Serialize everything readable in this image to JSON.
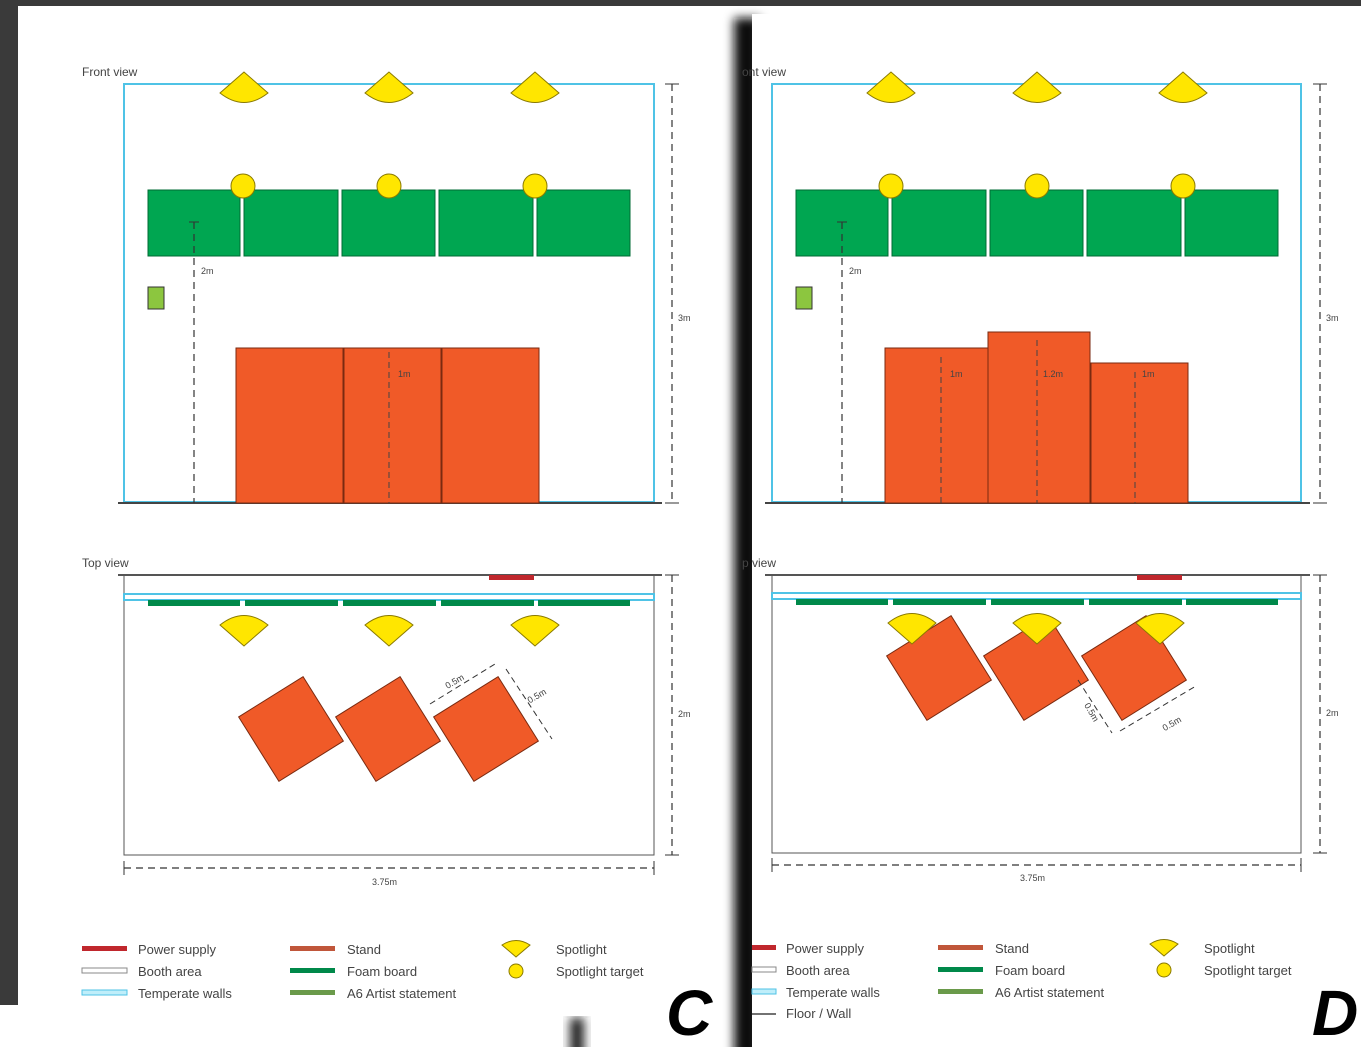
{
  "sheets": [
    {
      "id": "C",
      "letter": "C",
      "front_view_title": "Front view",
      "top_view_title": "Top view",
      "dim_height": "3m",
      "dim_power_height": "2m",
      "dim_depth": "2m",
      "dim_width": "3.75m",
      "dim_stand_side_a": "0.5m",
      "dim_stand_side_b": "0.5m",
      "stand_height_labels": [
        "1m"
      ]
    },
    {
      "id": "D",
      "letter": "D",
      "front_view_title": "ont view",
      "top_view_title": "p view",
      "dim_height": "3m",
      "dim_power_height": "2m",
      "dim_depth": "2m",
      "dim_width": "3.75m",
      "dim_stand_side_a": "0.5m",
      "dim_stand_side_b": "0.5m",
      "stand_height_labels": [
        "1m",
        "1.2m",
        "1m"
      ]
    }
  ],
  "legend": {
    "power_supply": "Power supply",
    "booth_area": "Booth area",
    "temperate_walls": "Temperate walls",
    "floor_wall": "Floor / Wall",
    "stand": "Stand",
    "foam_board": "Foam board",
    "artist_statement": "A6 Artist statement",
    "spotlight": "Spotlight",
    "spotlight_target": "Spotlight target"
  },
  "colors": {
    "frame_dark": "#3a3a3a",
    "wall_cyan": "#4fc3e6",
    "foam_board": "#00a651",
    "stand": "#f05a28",
    "spotlight": "#ffe600",
    "power": "#c0272d",
    "artist_statement": "#8cc63f"
  }
}
